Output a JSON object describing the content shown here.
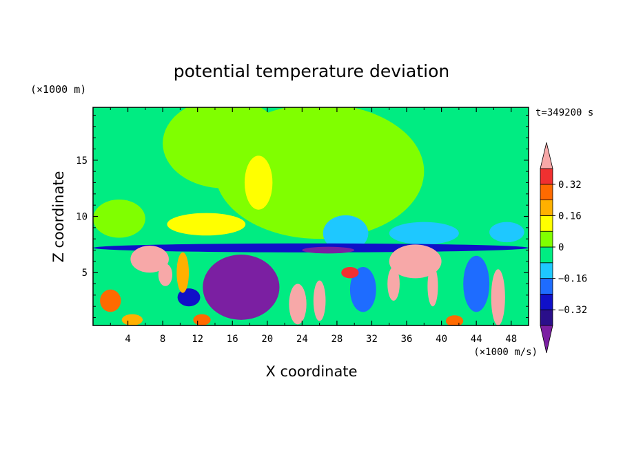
{
  "chart_data": {
    "type": "heatmap",
    "title": "potential temperature deviation",
    "xlabel": "X coordinate",
    "ylabel": "Z coordinate",
    "x_unit": "(×1000 m/s)",
    "y_unit": "(×1000 m)",
    "time_label": "t=349200 s",
    "xlim": [
      0,
      50
    ],
    "ylim": [
      0.3,
      19.7
    ],
    "x_ticks": [
      4,
      8,
      12,
      16,
      20,
      24,
      28,
      32,
      36,
      40,
      44,
      48
    ],
    "y_ticks": [
      5,
      10,
      15
    ],
    "colorbar": {
      "levels": [
        -0.48,
        -0.4,
        -0.32,
        -0.24,
        -0.16,
        -0.08,
        0,
        0.08,
        0.16,
        0.24,
        0.32,
        0.4,
        0.48
      ],
      "colors": [
        "#7b1fa2",
        "#2a0f8a",
        "#1010c8",
        "#1e6cff",
        "#1ec8ff",
        "#00ec82",
        "#80ff00",
        "#ffff00",
        "#ffb000",
        "#ff6a00",
        "#f03030",
        "#f7a8a8"
      ],
      "labels": [
        "-0.32",
        "-0.16",
        "0",
        "0.16",
        "0.32"
      ],
      "label_values": [
        -0.32,
        -0.16,
        0,
        0.16,
        0.32
      ],
      "extend": "both"
    },
    "background_value": -0.04,
    "features": [
      {
        "kind": "ellipse",
        "value": 0.04,
        "x": 26.0,
        "z": 14.0,
        "rx": 12.0,
        "rz": 6.0
      },
      {
        "kind": "ellipse",
        "value": 0.04,
        "x": 15.0,
        "z": 16.5,
        "rx": 7.0,
        "rz": 4.0
      },
      {
        "kind": "ellipse",
        "value": 0.04,
        "x": 3.0,
        "z": 9.8,
        "rx": 3.0,
        "rz": 1.7
      },
      {
        "kind": "ellipse",
        "value": 0.12,
        "x": 19.0,
        "z": 13.0,
        "rx": 1.6,
        "rz": 2.4
      },
      {
        "kind": "ellipse",
        "value": 0.12,
        "x": 13.0,
        "z": 9.3,
        "rx": 4.5,
        "rz": 1.0
      },
      {
        "kind": "ellipse",
        "value": -0.12,
        "x": 29.0,
        "z": 8.5,
        "rx": 2.6,
        "rz": 1.6
      },
      {
        "kind": "ellipse",
        "value": -0.12,
        "x": 38.0,
        "z": 8.5,
        "rx": 4.0,
        "rz": 1.0
      },
      {
        "kind": "ellipse",
        "value": -0.12,
        "x": 47.5,
        "z": 8.6,
        "rx": 2.0,
        "rz": 0.9
      },
      {
        "kind": "ellipse",
        "value": -0.3,
        "x": 25.0,
        "z": 7.2,
        "rx": 25.0,
        "rz": 0.4
      },
      {
        "kind": "ellipse",
        "value": -0.44,
        "x": 17.0,
        "z": 3.7,
        "rx": 4.4,
        "rz": 2.9
      },
      {
        "kind": "ellipse",
        "value": -0.44,
        "x": 27.0,
        "z": 7.0,
        "rx": 3.0,
        "rz": 0.3
      },
      {
        "kind": "ellipse",
        "value": -0.28,
        "x": 11.0,
        "z": 2.8,
        "rx": 1.3,
        "rz": 0.8
      },
      {
        "kind": "ellipse",
        "value": -0.2,
        "x": 31.0,
        "z": 3.5,
        "rx": 1.5,
        "rz": 2.0
      },
      {
        "kind": "ellipse",
        "value": -0.2,
        "x": 44.0,
        "z": 4.0,
        "rx": 1.5,
        "rz": 2.5
      },
      {
        "kind": "ellipse",
        "value": 0.45,
        "x": 6.5,
        "z": 6.2,
        "rx": 2.2,
        "rz": 1.2
      },
      {
        "kind": "ellipse",
        "value": 0.45,
        "x": 8.3,
        "z": 4.8,
        "rx": 0.8,
        "rz": 1.0
      },
      {
        "kind": "ellipse",
        "value": 0.45,
        "x": 37.0,
        "z": 6.0,
        "rx": 3.0,
        "rz": 1.5
      },
      {
        "kind": "ellipse",
        "value": 0.45,
        "x": 34.5,
        "z": 4.0,
        "rx": 0.7,
        "rz": 1.5
      },
      {
        "kind": "ellipse",
        "value": 0.45,
        "x": 39.0,
        "z": 3.8,
        "rx": 0.6,
        "rz": 1.8
      },
      {
        "kind": "ellipse",
        "value": 0.45,
        "x": 46.5,
        "z": 2.8,
        "rx": 0.8,
        "rz": 2.5
      },
      {
        "kind": "ellipse",
        "value": 0.45,
        "x": 23.5,
        "z": 2.2,
        "rx": 1.0,
        "rz": 1.8
      },
      {
        "kind": "ellipse",
        "value": 0.45,
        "x": 26.0,
        "z": 2.5,
        "rx": 0.7,
        "rz": 1.8
      },
      {
        "kind": "ellipse",
        "value": 0.36,
        "x": 29.5,
        "z": 5.0,
        "rx": 1.0,
        "rz": 0.5
      },
      {
        "kind": "ellipse",
        "value": 0.28,
        "x": 12.5,
        "z": 0.8,
        "rx": 1.0,
        "rz": 0.5
      },
      {
        "kind": "ellipse",
        "value": 0.28,
        "x": 2.0,
        "z": 2.5,
        "rx": 1.2,
        "rz": 1.0
      },
      {
        "kind": "ellipse",
        "value": 0.28,
        "x": 41.5,
        "z": 0.7,
        "rx": 1.0,
        "rz": 0.5
      },
      {
        "kind": "ellipse",
        "value": 0.2,
        "x": 4.5,
        "z": 0.8,
        "rx": 1.2,
        "rz": 0.5
      },
      {
        "kind": "ellipse",
        "value": 0.2,
        "x": 10.3,
        "z": 5.0,
        "rx": 0.7,
        "rz": 1.8
      }
    ]
  }
}
